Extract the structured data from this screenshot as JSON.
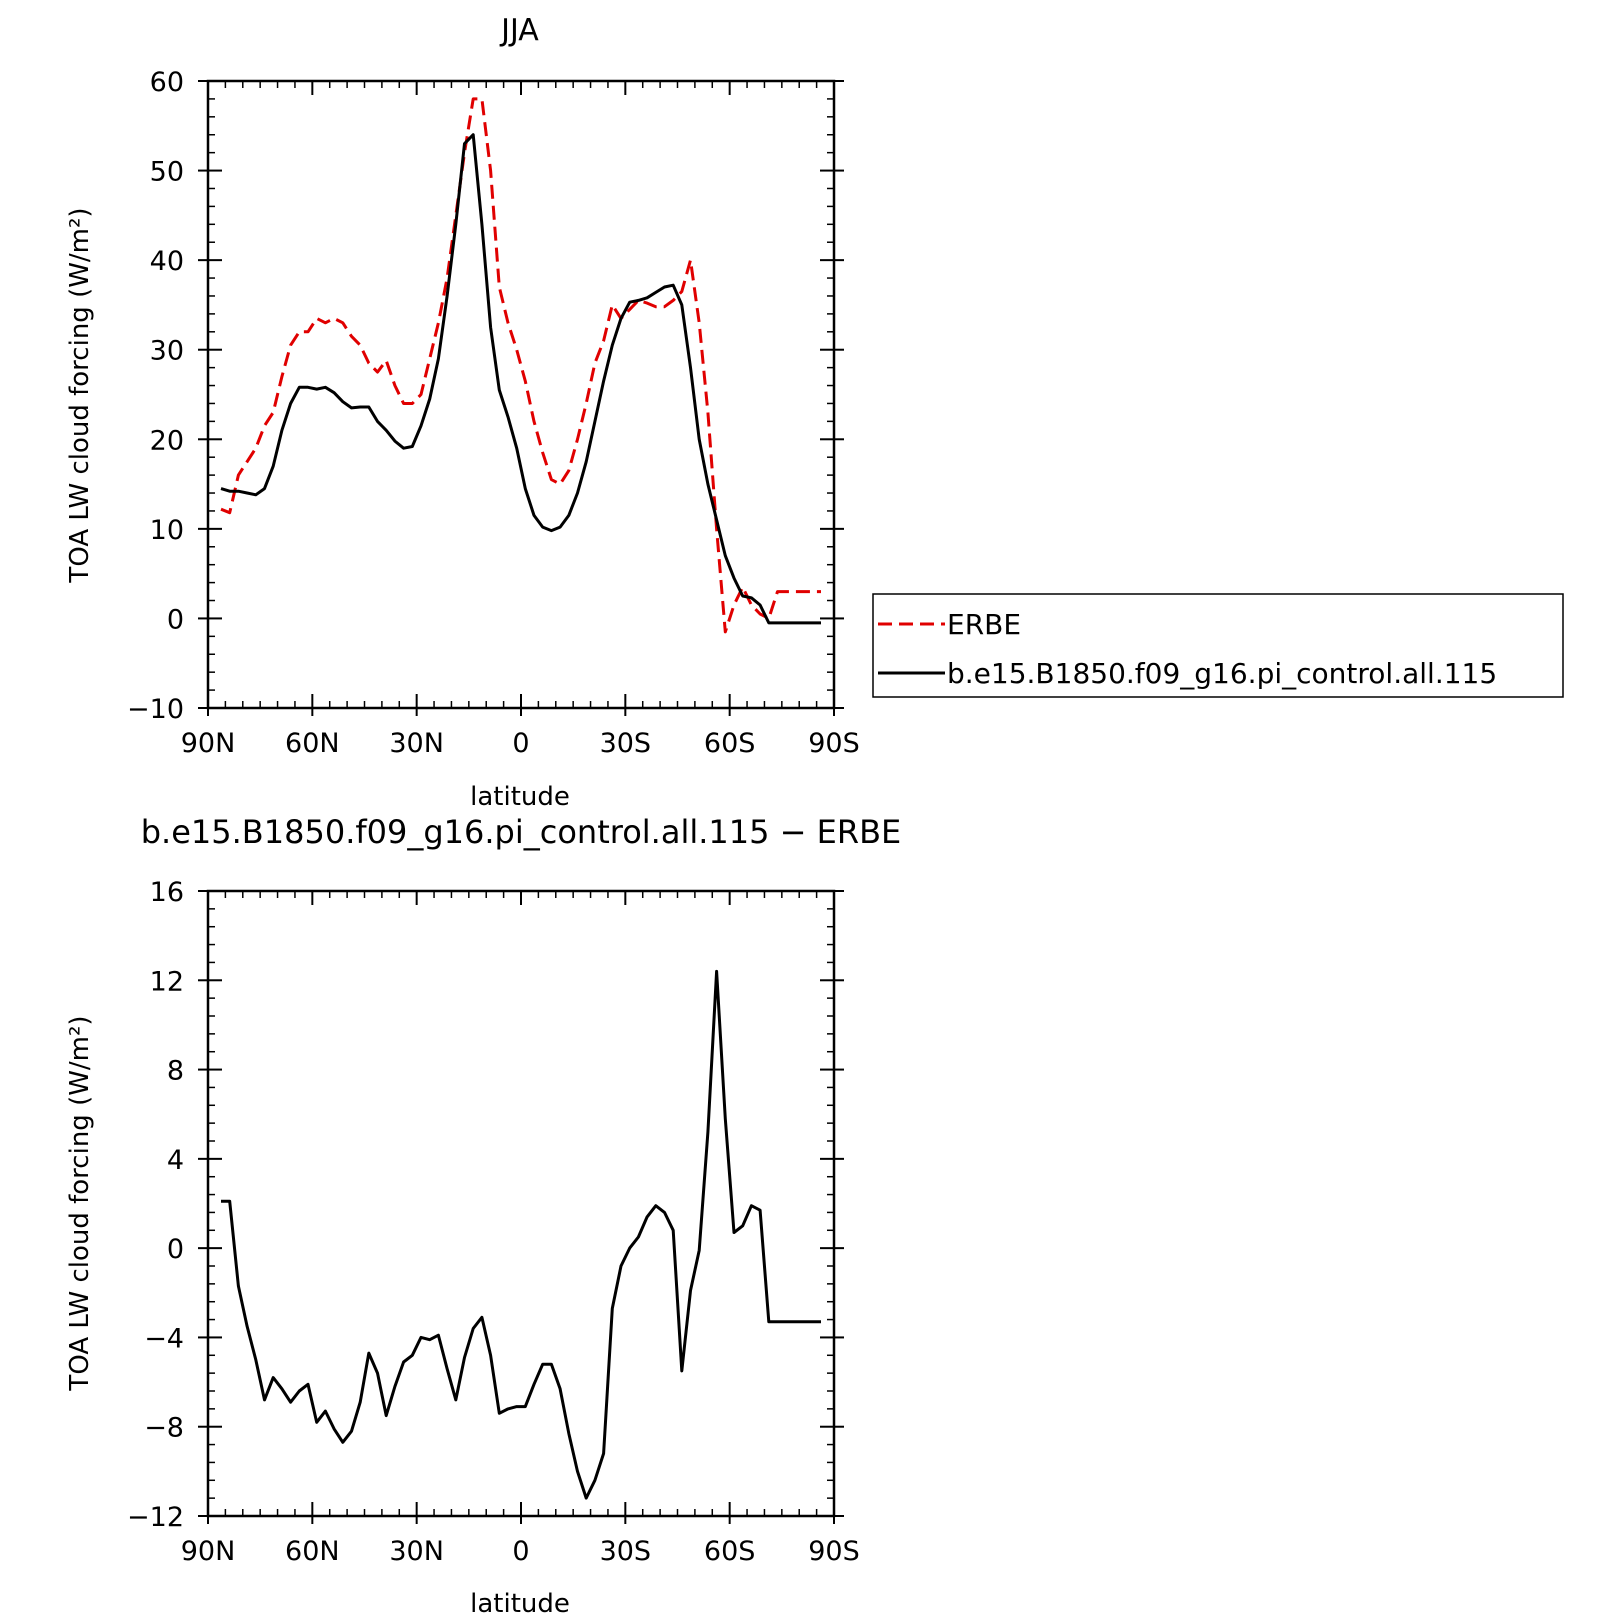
{
  "chart_data": [
    {
      "type": "line",
      "title": "JJA",
      "xlabel": "latitude",
      "ylabel": "TOA LW cloud forcing (W/m²)",
      "xlim": [
        90,
        -90
      ],
      "ylim": [
        -10,
        60
      ],
      "x_tick_values": [
        90,
        60,
        30,
        0,
        -30,
        -60,
        -90
      ],
      "x_tick_labels": [
        "90N",
        "60N",
        "30N",
        "0",
        "30S",
        "60S",
        "90S"
      ],
      "y_tick_values": [
        -10,
        0,
        10,
        20,
        30,
        40,
        50,
        60
      ],
      "y_tick_labels": [
        "−10",
        "0",
        "10",
        "20",
        "30",
        "40",
        "50",
        "60"
      ],
      "legend": {
        "placement": "right",
        "entries": [
          {
            "label": "ERBE",
            "color": "#e00000",
            "style": "dashed"
          },
          {
            "label": "b.e15.B1850.f09_g16.pi_control.all.115",
            "color": "#000000",
            "style": "solid"
          }
        ]
      },
      "series": [
        {
          "name": "ERBE",
          "color": "#e00000",
          "style": "dashed",
          "x": [
            86.25,
            83.75,
            81.25,
            78.75,
            76.25,
            73.75,
            71.25,
            68.75,
            66.25,
            63.75,
            61.25,
            58.75,
            56.25,
            53.75,
            51.25,
            48.75,
            46.25,
            43.75,
            41.25,
            38.75,
            36.25,
            33.75,
            31.25,
            28.75,
            26.25,
            23.75,
            21.25,
            18.75,
            16.25,
            13.75,
            11.25,
            8.75,
            6.25,
            3.75,
            1.25,
            -1.25,
            -3.75,
            -6.25,
            -8.75,
            -11.25,
            -13.75,
            -16.25,
            -18.75,
            -21.25,
            -23.75,
            -26.25,
            -28.75,
            -31.25,
            -33.75,
            -36.25,
            -38.75,
            -41.25,
            -43.75,
            -46.25,
            -48.75,
            -51.25,
            -53.75,
            -56.25,
            -58.75,
            -61.25,
            -63.75,
            -66.25,
            -68.75,
            -71.25,
            -73.75,
            -76.25,
            -78.75,
            -81.25,
            -83.75,
            -86.25
          ],
          "values": [
            12.2,
            11.8,
            16.0,
            17.5,
            19.0,
            21.5,
            23.0,
            27.0,
            30.5,
            32.0,
            32.0,
            33.5,
            33.0,
            33.5,
            33.0,
            31.5,
            30.5,
            28.5,
            27.5,
            28.8,
            26.0,
            24.0,
            24.0,
            25.0,
            29.0,
            33.0,
            38.0,
            45.0,
            52.0,
            58.0,
            58.0,
            50.0,
            37.0,
            33.0,
            30.0,
            26.5,
            22.0,
            18.5,
            15.5,
            15.0,
            16.5,
            20.0,
            24.0,
            28.5,
            31.0,
            35.0,
            33.5,
            34.5,
            35.5,
            35.2,
            34.8,
            34.8,
            35.5,
            36.5,
            40.0,
            33.0,
            23.0,
            10.0,
            -1.5,
            1.5,
            3.5,
            1.5,
            0.5,
            0.0,
            3.0,
            3.0,
            3.0,
            3.0,
            3.0,
            3.0
          ]
        },
        {
          "name": "b.e15.B1850.f09_g16.pi_control.all.115",
          "color": "#000000",
          "style": "solid",
          "x": [
            86.25,
            83.75,
            81.25,
            78.75,
            76.25,
            73.75,
            71.25,
            68.75,
            66.25,
            63.75,
            61.25,
            58.75,
            56.25,
            53.75,
            51.25,
            48.75,
            46.25,
            43.75,
            41.25,
            38.75,
            36.25,
            33.75,
            31.25,
            28.75,
            26.25,
            23.75,
            21.25,
            18.75,
            16.25,
            13.75,
            11.25,
            8.75,
            6.25,
            3.75,
            1.25,
            -1.25,
            -3.75,
            -6.25,
            -8.75,
            -11.25,
            -13.75,
            -16.25,
            -18.75,
            -21.25,
            -23.75,
            -26.25,
            -28.75,
            -31.25,
            -33.75,
            -36.25,
            -38.75,
            -41.25,
            -43.75,
            -46.25,
            -48.75,
            -51.25,
            -53.75,
            -56.25,
            -58.75,
            -61.25,
            -63.75,
            -66.25,
            -68.75,
            -71.25,
            -73.75,
            -76.25,
            -78.75,
            -81.25,
            -83.75,
            -86.25
          ],
          "values": [
            14.5,
            14.2,
            14.2,
            14.0,
            13.8,
            14.5,
            17.0,
            21.0,
            24.0,
            25.8,
            25.8,
            25.6,
            25.8,
            25.2,
            24.2,
            23.5,
            23.6,
            23.6,
            22.0,
            21.0,
            19.8,
            19.0,
            19.2,
            21.5,
            24.5,
            29.0,
            36.0,
            44.0,
            53.0,
            54.0,
            44.0,
            32.5,
            25.5,
            22.5,
            19.0,
            14.5,
            11.5,
            10.2,
            9.8,
            10.2,
            11.5,
            14.0,
            17.5,
            22.0,
            26.5,
            30.5,
            33.5,
            35.3,
            35.5,
            35.8,
            36.4,
            37.0,
            37.2,
            35.0,
            28.0,
            20.0,
            15.0,
            11.0,
            7.0,
            4.5,
            2.5,
            2.3,
            1.5,
            -0.5,
            -0.5,
            -0.5,
            -0.5,
            -0.5,
            -0.5,
            -0.5
          ]
        }
      ]
    },
    {
      "type": "line",
      "title": "b.e15.B1850.f09_g16.pi_control.all.115 − ERBE",
      "xlabel": "latitude",
      "ylabel": "TOA LW cloud forcing (W/m²)",
      "xlim": [
        90,
        -90
      ],
      "ylim": [
        -12,
        16
      ],
      "x_tick_values": [
        90,
        60,
        30,
        0,
        -30,
        -60,
        -90
      ],
      "x_tick_labels": [
        "90N",
        "60N",
        "30N",
        "0",
        "30S",
        "60S",
        "90S"
      ],
      "y_tick_values": [
        -12,
        -8,
        -4,
        0,
        4,
        8,
        12,
        16
      ],
      "y_tick_labels": [
        "−12",
        "−8",
        "−4",
        "0",
        "4",
        "8",
        "12",
        "16"
      ],
      "series": [
        {
          "color": "#000000",
          "style": "solid",
          "x": [
            86.25,
            83.75,
            81.25,
            78.75,
            76.25,
            73.75,
            71.25,
            68.75,
            66.25,
            63.75,
            61.25,
            58.75,
            56.25,
            53.75,
            51.25,
            48.75,
            46.25,
            43.75,
            41.25,
            38.75,
            36.25,
            33.75,
            31.25,
            28.75,
            26.25,
            23.75,
            21.25,
            18.75,
            16.25,
            13.75,
            11.25,
            8.75,
            6.25,
            3.75,
            1.25,
            -1.25,
            -3.75,
            -6.25,
            -8.75,
            -11.25,
            -13.75,
            -16.25,
            -18.75,
            -21.25,
            -23.75,
            -26.25,
            -28.75,
            -31.25,
            -33.75,
            -36.25,
            -38.75,
            -41.25,
            -43.75,
            -46.25,
            -48.75,
            -51.25,
            -53.75,
            -56.25,
            -58.75,
            -61.25,
            -63.75,
            -66.25,
            -68.75,
            -71.25,
            -73.75,
            -76.25,
            -78.75,
            -81.25,
            -83.75,
            -86.25
          ],
          "values": [
            2.1,
            2.1,
            -1.7,
            -3.5,
            -5.0,
            -6.8,
            -5.8,
            -6.3,
            -6.9,
            -6.4,
            -6.1,
            -7.8,
            -7.3,
            -8.1,
            -8.7,
            -8.2,
            -6.9,
            -4.7,
            -5.6,
            -7.5,
            -6.2,
            -5.1,
            -4.8,
            -4.0,
            -4.1,
            -3.9,
            -5.4,
            -6.8,
            -4.9,
            -3.6,
            -3.1,
            -4.8,
            -7.4,
            -7.2,
            -7.1,
            -7.1,
            -6.1,
            -5.2,
            -5.2,
            -6.3,
            -8.3,
            -10.0,
            -11.2,
            -10.4,
            -9.2,
            -2.7,
            -0.8,
            0.0,
            0.5,
            1.4,
            1.9,
            1.6,
            0.8,
            -5.5,
            -1.9,
            -0.1,
            5.2,
            12.4,
            5.8,
            0.7,
            1.0,
            1.9,
            1.7,
            -3.3,
            -3.3,
            -3.3,
            -3.3,
            -3.3,
            -3.3,
            -3.3
          ]
        }
      ]
    }
  ]
}
